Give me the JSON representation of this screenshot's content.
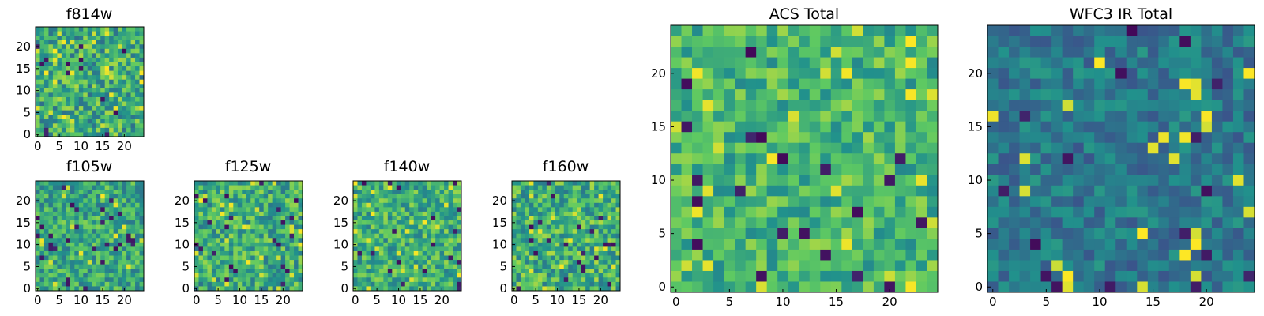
{
  "colormap": [
    "#440154",
    "#3b528b",
    "#21918c",
    "#5ec962",
    "#fde725"
  ],
  "panels": [
    {
      "id": "f814w",
      "title": "f814w",
      "grid": 25,
      "bright": 0.62,
      "spread": 0.26,
      "seed": 11,
      "xticks": [
        0,
        5,
        10,
        15,
        20
      ],
      "yticks": [
        0,
        5,
        10,
        15,
        20
      ]
    },
    {
      "id": "f105w",
      "title": "f105w",
      "grid": 25,
      "bright": 0.6,
      "spread": 0.22,
      "seed": 23,
      "xticks": [
        0,
        5,
        10,
        15,
        20
      ],
      "yticks": [
        0,
        5,
        10,
        15,
        20
      ]
    },
    {
      "id": "f125w",
      "title": "f125w",
      "grid": 25,
      "bright": 0.62,
      "spread": 0.24,
      "seed": 37,
      "xticks": [
        0,
        5,
        10,
        15,
        20
      ],
      "yticks": [
        0,
        5,
        10,
        15,
        20
      ]
    },
    {
      "id": "f140w",
      "title": "f140w",
      "grid": 25,
      "bright": 0.63,
      "spread": 0.22,
      "seed": 41,
      "xticks": [
        0,
        5,
        10,
        15,
        20
      ],
      "yticks": [
        0,
        5,
        10,
        15,
        20
      ]
    },
    {
      "id": "f160w",
      "title": "f160w",
      "grid": 25,
      "bright": 0.64,
      "spread": 0.24,
      "seed": 59,
      "xticks": [
        0,
        5,
        10,
        15,
        20
      ],
      "yticks": [
        0,
        5,
        10,
        15,
        20
      ]
    },
    {
      "id": "acs-total",
      "title": "ACS Total",
      "grid": 25,
      "bright": 0.66,
      "spread": 0.2,
      "seed": 73,
      "xticks": [
        0,
        5,
        10,
        15,
        20
      ],
      "yticks": [
        0,
        5,
        10,
        15,
        20
      ]
    },
    {
      "id": "wfc3-ir-total",
      "title": "WFC3 IR Total",
      "grid": 25,
      "bright": 0.4,
      "spread": 0.14,
      "seed": 97,
      "xticks": [
        0,
        5,
        10,
        15,
        20
      ],
      "yticks": [
        0,
        5,
        10,
        15,
        20
      ]
    }
  ],
  "chart_data": [
    {
      "type": "heatmap",
      "title": "f814w",
      "xlim": [
        0,
        25
      ],
      "ylim": [
        0,
        25
      ],
      "xticks": [
        0,
        5,
        10,
        15,
        20
      ],
      "yticks": [
        0,
        5,
        10,
        15,
        20
      ]
    },
    {
      "type": "heatmap",
      "title": "f105w",
      "xlim": [
        0,
        25
      ],
      "ylim": [
        0,
        25
      ],
      "xticks": [
        0,
        5,
        10,
        15,
        20
      ],
      "yticks": [
        0,
        5,
        10,
        15,
        20
      ]
    },
    {
      "type": "heatmap",
      "title": "f125w",
      "xlim": [
        0,
        25
      ],
      "ylim": [
        0,
        25
      ],
      "xticks": [
        0,
        5,
        10,
        15,
        20
      ],
      "yticks": [
        0,
        5,
        10,
        15,
        20
      ]
    },
    {
      "type": "heatmap",
      "title": "f140w",
      "xlim": [
        0,
        25
      ],
      "ylim": [
        0,
        25
      ],
      "xticks": [
        0,
        5,
        10,
        15,
        20
      ],
      "yticks": [
        0,
        5,
        10,
        15,
        20
      ]
    },
    {
      "type": "heatmap",
      "title": "f160w",
      "xlim": [
        0,
        25
      ],
      "ylim": [
        0,
        25
      ],
      "xticks": [
        0,
        5,
        10,
        15,
        20
      ],
      "yticks": [
        0,
        5,
        10,
        15,
        20
      ]
    },
    {
      "type": "heatmap",
      "title": "ACS Total",
      "xlim": [
        0,
        25
      ],
      "ylim": [
        0,
        25
      ],
      "xticks": [
        0,
        5,
        10,
        15,
        20
      ],
      "yticks": [
        0,
        5,
        10,
        15,
        20
      ]
    },
    {
      "type": "heatmap",
      "title": "WFC3 IR Total",
      "xlim": [
        0,
        25
      ],
      "ylim": [
        0,
        25
      ],
      "xticks": [
        0,
        5,
        10,
        15,
        20
      ],
      "yticks": [
        0,
        5,
        10,
        15,
        20
      ]
    }
  ]
}
